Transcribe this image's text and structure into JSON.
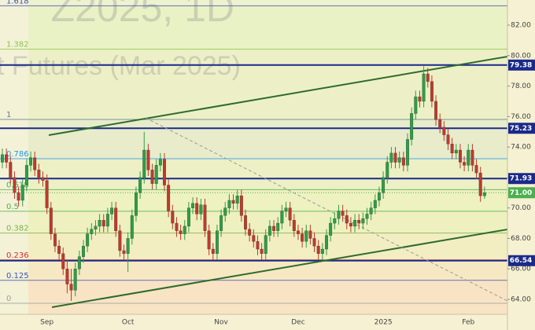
{
  "chart_data": {
    "type": "candlestick",
    "watermark": [
      "Z2025, 1D",
      "t Futures (Mar 2025)"
    ],
    "categories": [
      null,
      null,
      null,
      null,
      null,
      null,
      null,
      null,
      null,
      null,
      null,
      "Sep",
      null,
      null,
      null,
      null,
      null,
      null,
      null,
      null,
      null,
      null,
      null,
      null,
      null,
      null,
      null,
      null,
      null,
      null,
      null,
      "Oct",
      null,
      null,
      null,
      null,
      null,
      null,
      null,
      null,
      null,
      null,
      null,
      null,
      null,
      null,
      null,
      null,
      null,
      null,
      null,
      null,
      null,
      null,
      "Nov",
      null,
      null,
      null,
      null,
      null,
      null,
      null,
      null,
      null,
      null,
      null,
      null,
      null,
      null,
      null,
      null,
      null,
      null,
      "Dec",
      null,
      null,
      null,
      null,
      null,
      null,
      null,
      null,
      null,
      null,
      null,
      null,
      null,
      null,
      null,
      null,
      null,
      null,
      null,
      null,
      "2025",
      null,
      null,
      null,
      null,
      null,
      null,
      null,
      null,
      null,
      null,
      null,
      null,
      null,
      null,
      null,
      null,
      null,
      null,
      null,
      null,
      "Feb",
      null,
      null,
      null,
      null
    ],
    "open": [
      73.0,
      73.5,
      73.0,
      72.0,
      71.0,
      70.5,
      71.5,
      72.8,
      73.3,
      72.5,
      72.0,
      71.8,
      70.0,
      68.3,
      67.5,
      67.0,
      66.0,
      65.0,
      64.6,
      66.0,
      66.8,
      67.5,
      68.3,
      68.6,
      68.8,
      69.2,
      68.8,
      69.6,
      70.0,
      68.5,
      67.2,
      67.0,
      68.0,
      69.5,
      71.0,
      72.0,
      73.8,
      72.5,
      71.6,
      72.8,
      73.2,
      71.5,
      69.8,
      69.0,
      68.5,
      68.3,
      68.8,
      70.0,
      70.3,
      69.6,
      70.2,
      68.5,
      67.3,
      67.0,
      68.5,
      69.5,
      70.0,
      70.5,
      70.3,
      70.8,
      69.5,
      68.6,
      68.2,
      67.8,
      67.3,
      67.0,
      68.2,
      68.8,
      68.5,
      69.0,
      69.8,
      70.0,
      69.2,
      68.5,
      68.3,
      67.8,
      68.5,
      68.0,
      67.5,
      67.0,
      67.3,
      68.2,
      69.0,
      69.3,
      69.8,
      69.5,
      69.0,
      68.8,
      69.2,
      69.0,
      69.3,
      69.6,
      70.0,
      70.5,
      71.0,
      72.0,
      73.0,
      73.6,
      73.0,
      73.3,
      72.8,
      74.5,
      76.2,
      77.3,
      77.0,
      78.8,
      78.3,
      77.0,
      75.8,
      75.3,
      74.8,
      74.2,
      73.6,
      73.8,
      73.0,
      72.8,
      73.8,
      72.8,
      72.3,
      70.8
    ],
    "high": [
      73.9,
      73.9,
      73.4,
      72.4,
      71.4,
      71.9,
      73.2,
      73.7,
      73.7,
      72.9,
      72.4,
      72.2,
      70.4,
      68.7,
      67.9,
      67.4,
      66.6,
      66.0,
      66.4,
      67.2,
      67.9,
      68.7,
      69.0,
      69.2,
      69.6,
      69.6,
      70.0,
      70.4,
      70.4,
      68.9,
      67.6,
      68.4,
      69.9,
      71.4,
      72.4,
      75.0,
      74.2,
      72.9,
      73.2,
      73.6,
      73.6,
      71.9,
      70.2,
      69.4,
      68.9,
      69.2,
      70.4,
      70.7,
      70.7,
      70.6,
      70.6,
      68.9,
      67.7,
      68.9,
      69.9,
      70.4,
      70.9,
      70.9,
      71.2,
      71.2,
      69.9,
      69.0,
      68.6,
      68.2,
      67.7,
      68.6,
      69.2,
      69.2,
      69.4,
      70.2,
      70.4,
      70.4,
      69.6,
      68.9,
      68.7,
      68.9,
      68.9,
      68.4,
      67.9,
      67.7,
      68.6,
      69.4,
      69.7,
      70.2,
      70.2,
      69.9,
      69.4,
      69.6,
      69.6,
      69.7,
      70.0,
      70.4,
      70.9,
      71.4,
      72.4,
      73.4,
      74.0,
      74.0,
      73.7,
      73.7,
      74.9,
      76.6,
      77.7,
      77.7,
      79.3,
      79.2,
      78.7,
      77.4,
      76.2,
      75.7,
      75.2,
      74.6,
      74.2,
      74.2,
      73.4,
      74.2,
      74.2,
      73.2,
      72.7,
      71.4
    ],
    "low": [
      72.6,
      72.6,
      71.6,
      70.6,
      70.1,
      70.1,
      71.1,
      72.4,
      72.1,
      71.6,
      71.4,
      69.6,
      67.9,
      67.1,
      66.6,
      65.6,
      64.4,
      63.9,
      64.2,
      65.6,
      66.4,
      67.1,
      67.9,
      68.2,
      68.4,
      68.4,
      68.4,
      69.2,
      68.1,
      66.8,
      66.6,
      65.8,
      67.6,
      69.1,
      70.6,
      71.6,
      72.1,
      71.2,
      71.2,
      72.4,
      71.1,
      69.4,
      68.6,
      68.1,
      67.9,
      67.9,
      68.4,
      69.6,
      69.2,
      69.2,
      68.1,
      66.9,
      66.6,
      66.6,
      68.1,
      69.1,
      69.6,
      69.9,
      69.9,
      69.1,
      68.2,
      67.8,
      67.4,
      66.9,
      66.6,
      66.6,
      67.8,
      68.1,
      68.1,
      68.6,
      69.4,
      68.8,
      68.1,
      67.9,
      67.4,
      67.4,
      67.6,
      67.1,
      66.6,
      66.6,
      66.9,
      67.8,
      68.6,
      68.9,
      69.1,
      68.6,
      68.4,
      68.4,
      68.6,
      68.6,
      68.9,
      69.2,
      69.6,
      70.1,
      70.6,
      71.6,
      72.6,
      72.6,
      72.6,
      72.4,
      72.4,
      74.1,
      75.8,
      76.6,
      76.6,
      77.9,
      76.6,
      75.4,
      74.9,
      74.4,
      73.8,
      73.2,
      73.2,
      72.6,
      72.4,
      72.4,
      72.4,
      71.9,
      70.4,
      70.6
    ],
    "close": [
      73.5,
      73.0,
      72.0,
      71.0,
      70.5,
      71.5,
      72.8,
      73.3,
      72.5,
      72.0,
      71.8,
      70.0,
      68.3,
      67.5,
      67.0,
      66.0,
      65.0,
      64.6,
      66.0,
      66.8,
      67.5,
      68.3,
      68.6,
      68.8,
      69.2,
      68.8,
      69.6,
      70.0,
      68.5,
      67.2,
      67.0,
      68.0,
      69.5,
      71.0,
      72.0,
      73.8,
      72.5,
      71.6,
      72.8,
      73.2,
      71.5,
      69.8,
      69.0,
      68.5,
      68.3,
      68.8,
      70.0,
      70.3,
      69.6,
      70.2,
      68.5,
      67.3,
      67.0,
      68.5,
      69.5,
      70.0,
      70.5,
      70.3,
      70.8,
      69.5,
      68.6,
      68.2,
      67.8,
      67.3,
      67.0,
      68.2,
      68.8,
      68.5,
      69.0,
      69.8,
      70.0,
      69.2,
      68.5,
      68.3,
      67.8,
      68.5,
      68.0,
      67.5,
      67.0,
      67.3,
      68.2,
      69.0,
      69.3,
      69.8,
      69.5,
      69.0,
      68.8,
      69.2,
      69.0,
      69.3,
      69.6,
      70.0,
      70.5,
      71.0,
      72.0,
      73.0,
      73.6,
      73.0,
      73.3,
      72.8,
      74.5,
      76.2,
      77.3,
      77.0,
      78.8,
      78.3,
      77.0,
      75.8,
      75.3,
      74.8,
      74.2,
      73.6,
      73.8,
      73.0,
      72.8,
      73.8,
      72.8,
      72.3,
      70.8,
      71.0
    ],
    "up_color": "#2e9e44",
    "down_color": "#c0392b",
    "ylim": [
      63.02,
      83.65
    ],
    "yticks": [
      {
        "value": 64,
        "label": "64.00"
      },
      {
        "value": 66,
        "label": "66.00"
      },
      {
        "value": 68,
        "label": "68.00"
      },
      {
        "value": 70,
        "label": "70.00"
      },
      {
        "value": 72,
        "label": "72.00"
      },
      {
        "value": 74,
        "label": "74.00"
      },
      {
        "value": 76,
        "label": "76.00"
      },
      {
        "value": 78,
        "label": "78.00"
      },
      {
        "value": 80,
        "label": "80.00"
      },
      {
        "value": 82,
        "label": "82.00"
      }
    ],
    "levels": [
      {
        "value": 79.38,
        "label": "79.38"
      },
      {
        "value": 75.23,
        "label": "75.23"
      },
      {
        "value": 71.93,
        "label": "71.93"
      },
      {
        "value": 66.54,
        "label": "66.54"
      }
    ],
    "level_color": "#1a2a8a",
    "last_price": {
      "value": 71.0,
      "label": "71.00"
    },
    "last_price_color": "#4caf50",
    "fib_levels": [
      {
        "label": "1.618",
        "value": 83.27,
        "color": "#3f51b5"
      },
      {
        "label": "1.382",
        "value": 80.42,
        "color": "#8bc34a"
      },
      {
        "label": "1",
        "value": 75.81,
        "color": "#607d8b"
      },
      {
        "label": "0.786",
        "value": 73.23,
        "color": "#2196f3"
      },
      {
        "label": "0.618",
        "value": 71.2,
        "color": "#4caf50"
      },
      {
        "label": "0.5",
        "value": 69.78,
        "color": "#4caf50"
      },
      {
        "label": "0.382",
        "value": 68.35,
        "color": "#7cb342"
      },
      {
        "label": "0.236",
        "value": 66.59,
        "color": "#d32f2f"
      },
      {
        "label": "0.125",
        "value": 65.25,
        "color": "#3f51b5"
      },
      {
        "label": "0",
        "value": 63.74,
        "color": "#9e9e9e"
      }
    ],
    "band_colors": [
      "#eef3cf",
      "#e9f2c4",
      "#edf0c6",
      "#e8eccb",
      "#ecf0c4",
      "#eef1c0",
      "#eef0bf",
      "#f2eec2",
      "#f6e8c2",
      "#f8e4c4",
      "#f8e4c4"
    ]
  }
}
